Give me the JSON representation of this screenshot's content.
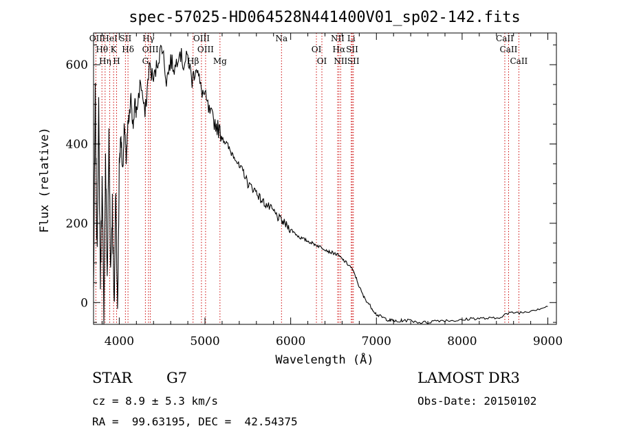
{
  "chart_data": {
    "type": "line",
    "title": "spec-57025-HD064528N441400V01_sp02-142.fits",
    "xlabel": "Wavelength (Å)",
    "ylabel": "Flux (relative)",
    "xlim": [
      3700,
      9100
    ],
    "ylim": [
      -55,
      680
    ],
    "xticks": [
      4000,
      5000,
      6000,
      7000,
      8000,
      9000
    ],
    "yticks": [
      0,
      200,
      400,
      600
    ],
    "line_color": "#000000",
    "marker_color": "#cc0000",
    "series": [
      {
        "name": "flux",
        "x": [
          3700,
          3720,
          3740,
          3760,
          3780,
          3800,
          3820,
          3840,
          3860,
          3880,
          3900,
          3920,
          3940,
          3960,
          3980,
          4000,
          4020,
          4040,
          4060,
          4080,
          4100,
          4120,
          4140,
          4160,
          4180,
          4200,
          4250,
          4300,
          4350,
          4400,
          4450,
          4500,
          4550,
          4600,
          4650,
          4700,
          4750,
          4800,
          4850,
          4900,
          4950,
          5000,
          5050,
          5100,
          5150,
          5200,
          5250,
          5300,
          5350,
          5400,
          5450,
          5500,
          5550,
          5600,
          5650,
          5700,
          5750,
          5800,
          5850,
          5900,
          5950,
          6000,
          6050,
          6100,
          6150,
          6200,
          6250,
          6300,
          6350,
          6400,
          6450,
          6500,
          6550,
          6600,
          6650,
          6700,
          6750,
          6800,
          6850,
          6900,
          6950,
          7000,
          7050,
          7100,
          7150,
          7200,
          7250,
          7300,
          7400,
          7500,
          7600,
          7700,
          7800,
          7900,
          8000,
          8100,
          8200,
          8300,
          8400,
          8500,
          8600,
          8700,
          8800,
          8900,
          9000
        ],
        "values": [
          30,
          520,
          120,
          480,
          60,
          300,
          -20,
          350,
          60,
          420,
          80,
          250,
          -30,
          300,
          -40,
          350,
          420,
          330,
          450,
          360,
          440,
          470,
          520,
          440,
          500,
          480,
          560,
          470,
          600,
          560,
          610,
          650,
          560,
          610,
          590,
          640,
          600,
          620,
          560,
          600,
          540,
          520,
          480,
          460,
          440,
          420,
          400,
          380,
          370,
          340,
          330,
          300,
          290,
          280,
          260,
          250,
          240,
          230,
          215,
          205,
          195,
          185,
          175,
          165,
          160,
          155,
          150,
          145,
          140,
          135,
          128,
          125,
          120,
          110,
          100,
          90,
          70,
          40,
          15,
          0,
          -15,
          -30,
          -35,
          -40,
          -45,
          -45,
          -50,
          -45,
          -45,
          -50,
          -50,
          -45,
          -45,
          -45,
          -45,
          -40,
          -40,
          -40,
          -40,
          -30,
          -25,
          -25,
          -20,
          -15,
          -10
        ]
      }
    ],
    "spectral_lines": [
      {
        "wl": 3727,
        "labels": [
          "OII"
        ],
        "rows": [
          0
        ]
      },
      {
        "wl": 3798,
        "labels": [
          "Hθ"
        ],
        "rows": [
          0
        ]
      },
      {
        "wl": 3835,
        "labels": [
          "Hη"
        ],
        "rows": [
          0
        ]
      },
      {
        "wl": 3889,
        "labels": [
          "HeI"
        ],
        "rows": [
          0
        ]
      },
      {
        "wl": 3934,
        "labels": [
          "K"
        ],
        "rows": [
          0
        ]
      },
      {
        "wl": 3969,
        "labels": [
          "H"
        ],
        "rows": [
          0
        ]
      },
      {
        "wl": 4072,
        "labels": [
          "SII"
        ],
        "rows": [
          0
        ]
      },
      {
        "wl": 4102,
        "labels": [
          "Hδ"
        ],
        "rows": [
          0
        ]
      },
      {
        "wl": 4305,
        "labels": [
          "G"
        ],
        "rows": [
          0
        ]
      },
      {
        "wl": 4341,
        "labels": [
          "Hγ"
        ],
        "rows": [
          0
        ]
      },
      {
        "wl": 4363,
        "labels": [
          "OIII"
        ],
        "rows": [
          0
        ]
      },
      {
        "wl": 4861,
        "labels": [
          "Hβ"
        ],
        "rows": [
          0
        ]
      },
      {
        "wl": 4959,
        "labels": [
          "OIII"
        ],
        "rows": [
          0
        ]
      },
      {
        "wl": 5007,
        "labels": [
          "OIII"
        ],
        "rows": [
          0
        ]
      },
      {
        "wl": 5175,
        "labels": [
          "Mg"
        ],
        "rows": [
          0
        ]
      },
      {
        "wl": 5893,
        "labels": [
          "Na"
        ],
        "rows": [
          0
        ]
      },
      {
        "wl": 6300,
        "labels": [
          "OI"
        ],
        "rows": [
          0
        ]
      },
      {
        "wl": 6364,
        "labels": [
          "OI"
        ],
        "rows": [
          0
        ]
      },
      {
        "wl": 6548,
        "labels": [
          "NII"
        ],
        "rows": [
          0
        ]
      },
      {
        "wl": 6563,
        "labels": [
          "Hα"
        ],
        "rows": [
          0
        ]
      },
      {
        "wl": 6583,
        "labels": [
          "NII"
        ],
        "rows": [
          0
        ]
      },
      {
        "wl": 6707,
        "labels": [
          "Li"
        ],
        "rows": [
          0
        ]
      },
      {
        "wl": 6717,
        "labels": [
          "SII"
        ],
        "rows": [
          0
        ]
      },
      {
        "wl": 6731,
        "labels": [
          "SII"
        ],
        "rows": [
          0
        ]
      },
      {
        "wl": 8498,
        "labels": [
          "CaII"
        ],
        "rows": [
          0
        ]
      },
      {
        "wl": 8542,
        "labels": [
          "CaII"
        ],
        "rows": [
          0
        ]
      },
      {
        "wl": 8662,
        "labels": [
          "CaII"
        ],
        "rows": [
          0
        ]
      }
    ]
  },
  "info": {
    "object_class": "STAR",
    "subclass": "G7",
    "redshift": "cz = 8.9 ± 5.3 km/s",
    "coords": "RA =  99.63195, DEC =  42.54375",
    "survey": "LAMOST DR3",
    "obs_date": "Obs-Date: 20150102"
  }
}
